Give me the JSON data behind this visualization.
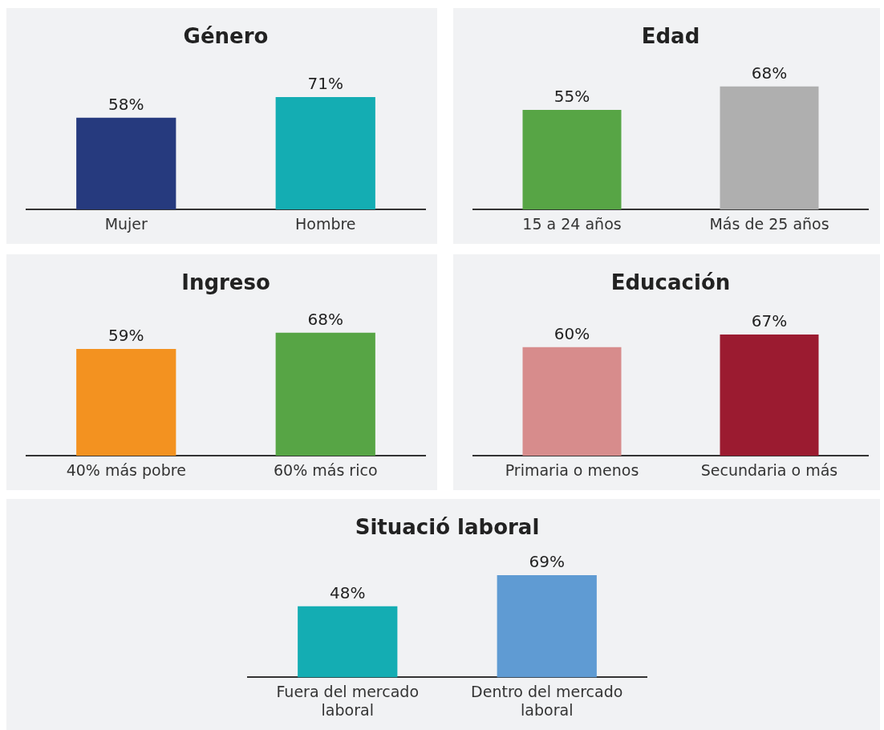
{
  "chart_data": [
    {
      "type": "bar",
      "title": "Género",
      "categories": [
        "Mujer",
        "Hombre"
      ],
      "values": [
        58,
        71
      ],
      "colors": [
        "#263a7e",
        "#14adb3"
      ],
      "value_labels": [
        "58%",
        "71%"
      ],
      "grid": false,
      "legend": false
    },
    {
      "type": "bar",
      "title": "Edad",
      "categories": [
        "15 a 24 años",
        "Más de 25 años"
      ],
      "values": [
        55,
        68
      ],
      "colors": [
        "#57a545",
        "#afafaf"
      ],
      "value_labels": [
        "55%",
        "68%"
      ],
      "grid": false,
      "legend": false
    },
    {
      "type": "bar",
      "title": "Ingreso",
      "categories": [
        "40% más pobre",
        "60% más rico"
      ],
      "values": [
        59,
        68
      ],
      "colors": [
        "#f39220",
        "#57a545"
      ],
      "value_labels": [
        "59%",
        "68%"
      ],
      "grid": false,
      "legend": false
    },
    {
      "type": "bar",
      "title": "Educación",
      "categories": [
        "Primaria o menos",
        "Secundaria o más"
      ],
      "values": [
        60,
        67
      ],
      "colors": [
        "#d78c8c",
        "#9b1b30"
      ],
      "value_labels": [
        "60%",
        "67%"
      ],
      "grid": false,
      "legend": false
    },
    {
      "type": "bar",
      "title": "Situació laboral",
      "categories": [
        "Fuera del mercado laboral",
        "Dentro del mercado laboral"
      ],
      "values": [
        48,
        69
      ],
      "colors": [
        "#14adb3",
        "#5f9bd3"
      ],
      "value_labels": [
        "48%",
        "69%"
      ],
      "grid": false,
      "legend": false
    }
  ]
}
